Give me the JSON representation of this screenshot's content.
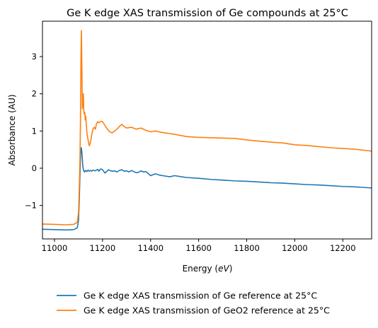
{
  "chart_data": {
    "type": "line",
    "title": "Ge K edge XAS transmission of Ge compounds at 25°C",
    "xlabel": "Energy (eV)",
    "xlabel_prefix": "Energy (",
    "xlabel_unit": "eV",
    "xlabel_suffix": ")",
    "ylabel": "Absorbance (AU)",
    "xlim": [
      10950,
      12320
    ],
    "ylim": [
      -1.9,
      3.95
    ],
    "xticks": [
      11000,
      11200,
      11400,
      11600,
      11800,
      12000,
      12200
    ],
    "yticks": [
      -1,
      0,
      1,
      2,
      3
    ],
    "ytick_labels": [
      "−1",
      "0",
      "1",
      "2",
      "3"
    ],
    "grid": false,
    "legend_position": "bottom-center, below plot",
    "series": [
      {
        "name": "Ge K edge XAS transmission of Ge reference at 25°C",
        "color": "#1f77b4",
        "x": [
          10950,
          11000,
          11050,
          11080,
          11095,
          11100,
          11103,
          11106,
          11109,
          11112,
          11115,
          11118,
          11121,
          11125,
          11130,
          11135,
          11140,
          11145,
          11150,
          11155,
          11160,
          11170,
          11180,
          11185,
          11190,
          11195,
          11200,
          11210,
          11220,
          11225,
          11230,
          11240,
          11250,
          11260,
          11270,
          11280,
          11290,
          11300,
          11310,
          11320,
          11330,
          11340,
          11350,
          11360,
          11370,
          11380,
          11390,
          11400,
          11420,
          11440,
          11460,
          11480,
          11500,
          11550,
          11600,
          11650,
          11700,
          11750,
          11800,
          11850,
          11900,
          11950,
          12000,
          12050,
          12100,
          12150,
          12200,
          12250,
          12320
        ],
        "y": [
          -1.64,
          -1.65,
          -1.66,
          -1.65,
          -1.6,
          -1.4,
          -0.9,
          -0.2,
          0.4,
          0.55,
          0.35,
          0.05,
          -0.05,
          -0.1,
          -0.06,
          -0.09,
          -0.05,
          -0.08,
          -0.06,
          -0.08,
          -0.05,
          -0.07,
          -0.03,
          -0.08,
          -0.03,
          -0.02,
          -0.04,
          -0.13,
          -0.07,
          -0.04,
          -0.06,
          -0.08,
          -0.07,
          -0.1,
          -0.06,
          -0.04,
          -0.08,
          -0.07,
          -0.1,
          -0.06,
          -0.09,
          -0.12,
          -0.11,
          -0.07,
          -0.1,
          -0.09,
          -0.14,
          -0.2,
          -0.15,
          -0.19,
          -0.21,
          -0.23,
          -0.2,
          -0.25,
          -0.27,
          -0.3,
          -0.32,
          -0.34,
          -0.35,
          -0.37,
          -0.39,
          -0.4,
          -0.42,
          -0.44,
          -0.45,
          -0.47,
          -0.49,
          -0.5,
          -0.53
        ]
      },
      {
        "name": "Ge K edge XAS transmission of GeO2 reference at 25°C",
        "color": "#ff7f0e",
        "x": [
          10950,
          11000,
          11050,
          11080,
          11095,
          11100,
          11103,
          11106,
          11108,
          11110,
          11112,
          11114,
          11116,
          11118,
          11120,
          11122,
          11124,
          11126,
          11128,
          11130,
          11135,
          11140,
          11145,
          11150,
          11155,
          11160,
          11165,
          11170,
          11175,
          11180,
          11185,
          11190,
          11195,
          11200,
          11210,
          11220,
          11230,
          11240,
          11250,
          11260,
          11270,
          11280,
          11290,
          11300,
          11320,
          11340,
          11360,
          11380,
          11400,
          11420,
          11440,
          11460,
          11480,
          11500,
          11550,
          11600,
          11650,
          11700,
          11750,
          11800,
          11850,
          11900,
          11950,
          12000,
          12050,
          12100,
          12150,
          12200,
          12250,
          12320
        ],
        "y": [
          -1.5,
          -1.51,
          -1.52,
          -1.51,
          -1.45,
          -1.2,
          -0.6,
          0.2,
          1.2,
          2.8,
          3.7,
          2.7,
          1.6,
          1.9,
          2.0,
          1.55,
          1.45,
          1.5,
          1.3,
          1.4,
          0.95,
          0.75,
          0.6,
          0.7,
          0.9,
          1.05,
          1.1,
          1.05,
          1.2,
          1.25,
          1.22,
          1.25,
          1.26,
          1.25,
          1.15,
          1.05,
          0.98,
          0.95,
          1.0,
          1.05,
          1.12,
          1.18,
          1.12,
          1.08,
          1.1,
          1.05,
          1.08,
          1.02,
          0.98,
          1.0,
          0.97,
          0.95,
          0.93,
          0.91,
          0.85,
          0.83,
          0.82,
          0.81,
          0.8,
          0.76,
          0.73,
          0.7,
          0.68,
          0.63,
          0.61,
          0.58,
          0.55,
          0.53,
          0.51,
          0.46
        ]
      }
    ]
  }
}
